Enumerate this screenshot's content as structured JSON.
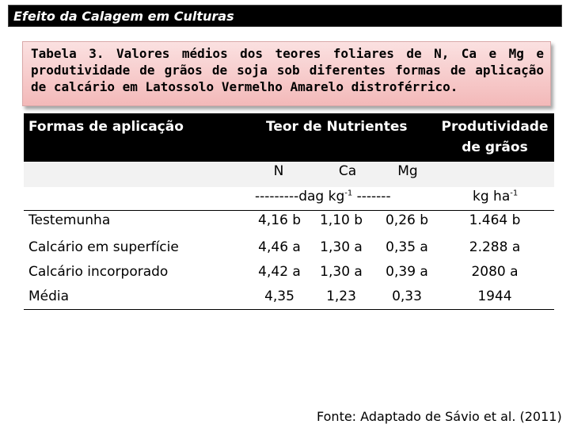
{
  "slide": {
    "title": "Efeito da Calagem em Culturas",
    "caption": "Tabela 3. Valores médios dos teores foliares de N, Ca e Mg e produtividade de grãos de soja sob diferentes formas de aplicação de calcário em Latossolo Vermelho Amarelo distroférrico.",
    "source": "Fonte: Adaptado de Sávio et al. (2011)"
  },
  "table": {
    "header": {
      "col1": "Formas de aplicação",
      "col2": "Teor de Nutrientes",
      "col3_line1": "Produtividade",
      "col3_line2": "de grãos"
    },
    "nutrients": [
      "N",
      "Ca",
      "Mg"
    ],
    "units": {
      "nutrients_prefix": "---------dag kg",
      "nutrients_exp": "-1",
      "nutrients_suffix": " -------",
      "yield_prefix": "kg ha",
      "yield_exp": "-1"
    },
    "rows": [
      {
        "label": "Testemunha",
        "n": "4,16 b",
        "ca": "1,10 b",
        "mg": "0,26 b",
        "yield": "1.464 b"
      },
      {
        "label": "Calcário em superfície",
        "n": "4,46 a",
        "ca": "1,30 a",
        "mg": "0,35 a",
        "yield": "2.288 a"
      },
      {
        "label": "Calcário incorporado",
        "n": "4,42 a",
        "ca": "1,30 a",
        "mg": "0,39 a",
        "yield": "2080 a"
      },
      {
        "label": "Média",
        "n": "4,35",
        "ca": "1,23",
        "mg": "0,33",
        "yield": "1944"
      }
    ]
  }
}
